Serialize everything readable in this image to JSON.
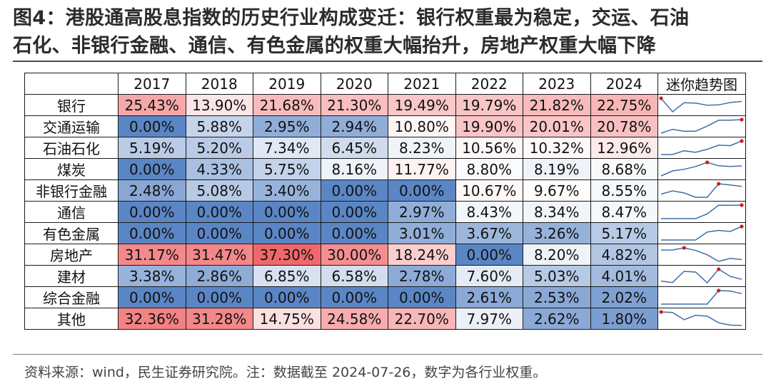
{
  "title": {
    "line1": "图4：港股通高股息指数的历史行业构成变迁：银行权重最为稳定，交运、石油",
    "line2": "石化、非银行金融、通信、有色金属的权重大幅抬升，房地产权重大幅下降"
  },
  "source": "资料来源：wind，民生证券研究院。注：数据截至 2024-07-26，数字为各行业权重。",
  "trend_header": "迷你趋势图",
  "colors": {
    "high": "#f0686b",
    "mid": "#ffffff",
    "low": "#5b86c5",
    "sparkline": "#3f6fa8",
    "sparkline_marker": "#cc1f1f"
  },
  "chart_data": {
    "type": "table",
    "columns": [
      "2017",
      "2018",
      "2019",
      "2020",
      "2021",
      "2022",
      "2023",
      "2024"
    ],
    "rows": [
      {
        "name": "银行",
        "labels": [
          "25.43%",
          "13.90%",
          "21.68%",
          "21.30%",
          "19.49%",
          "19.79%",
          "21.82%",
          "22.75%"
        ],
        "values": [
          25.43,
          13.9,
          21.68,
          21.3,
          19.49,
          19.79,
          21.82,
          22.75
        ]
      },
      {
        "name": "交通运输",
        "labels": [
          "0.00%",
          "5.88%",
          "2.95%",
          "2.94%",
          "10.80%",
          "19.90%",
          "20.01%",
          "20.78%"
        ],
        "values": [
          0.0,
          5.88,
          2.95,
          2.94,
          10.8,
          19.9,
          20.01,
          20.78
        ]
      },
      {
        "name": "石油石化",
        "labels": [
          "5.19%",
          "5.20%",
          "7.34%",
          "6.45%",
          "8.23%",
          "10.56%",
          "10.32%",
          "12.96%"
        ],
        "values": [
          5.19,
          5.2,
          7.34,
          6.45,
          8.23,
          10.56,
          10.32,
          12.96
        ]
      },
      {
        "name": "煤炭",
        "labels": [
          "0.00%",
          "4.33%",
          "5.75%",
          "8.16%",
          "11.77%",
          "8.80%",
          "8.19%",
          "8.68%"
        ],
        "values": [
          0.0,
          4.33,
          5.75,
          8.16,
          11.77,
          8.8,
          8.19,
          8.68
        ]
      },
      {
        "name": "非银行金融",
        "labels": [
          "2.48%",
          "5.08%",
          "3.40%",
          "0.00%",
          "0.00%",
          "10.67%",
          "9.67%",
          "8.55%"
        ],
        "values": [
          2.48,
          5.08,
          3.4,
          0.0,
          0.0,
          10.67,
          9.67,
          8.55
        ]
      },
      {
        "name": "通信",
        "labels": [
          "0.00%",
          "0.00%",
          "0.00%",
          "0.00%",
          "2.97%",
          "8.43%",
          "8.34%",
          "8.47%"
        ],
        "values": [
          0.0,
          0.0,
          0.0,
          0.0,
          2.97,
          8.43,
          8.34,
          8.47
        ]
      },
      {
        "name": "有色金属",
        "labels": [
          "0.00%",
          "0.00%",
          "0.00%",
          "0.00%",
          "3.01%",
          "3.67%",
          "3.26%",
          "5.17%"
        ],
        "values": [
          0.0,
          0.0,
          0.0,
          0.0,
          3.01,
          3.67,
          3.26,
          5.17
        ]
      },
      {
        "name": "房地产",
        "labels": [
          "31.17%",
          "31.47%",
          "37.30%",
          "30.00%",
          "18.24%",
          "0.00%",
          "8.20%",
          "4.82%"
        ],
        "values": [
          31.17,
          31.47,
          37.3,
          30.0,
          18.24,
          0.0,
          8.2,
          4.82
        ]
      },
      {
        "name": "建材",
        "labels": [
          "3.38%",
          "2.86%",
          "6.85%",
          "6.58%",
          "2.78%",
          "7.60%",
          "5.03%",
          "4.01%"
        ],
        "values": [
          3.38,
          2.86,
          6.85,
          6.58,
          2.78,
          7.6,
          5.03,
          4.01
        ]
      },
      {
        "name": "综合金融",
        "labels": [
          "0.00%",
          "0.00%",
          "0.00%",
          "0.00%",
          "0.00%",
          "2.61%",
          "2.53%",
          "2.02%"
        ],
        "values": [
          0.0,
          0.0,
          0.0,
          0.0,
          0.0,
          2.61,
          2.53,
          2.02
        ]
      },
      {
        "name": "其他",
        "labels": [
          "32.36%",
          "31.28%",
          "14.75%",
          "24.58%",
          "22.70%",
          "7.97%",
          "2.62%",
          "1.80%"
        ],
        "values": [
          32.36,
          31.28,
          14.75,
          24.58,
          22.7,
          7.97,
          2.62,
          1.8
        ]
      }
    ]
  }
}
